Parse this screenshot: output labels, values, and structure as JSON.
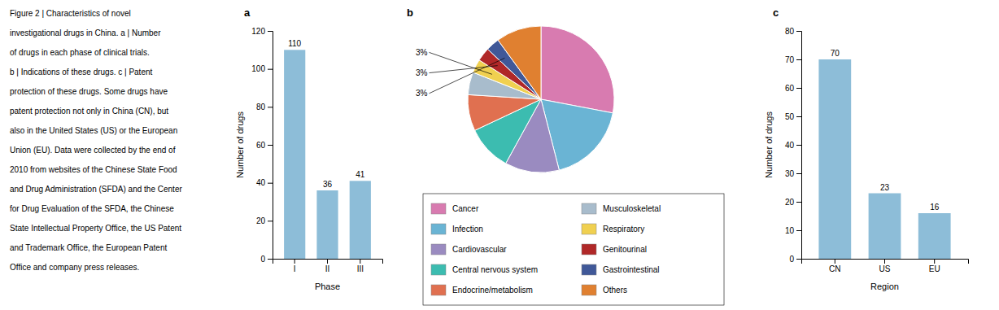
{
  "chart_data": [
    {
      "type": "bar",
      "title": "a",
      "categories": [
        "I",
        "II",
        "III"
      ],
      "values": [
        110,
        36,
        41
      ],
      "color": "#8DBDD8",
      "xlabel": "Phase",
      "ylabel": "Number of drugs",
      "ylim": [
        0,
        120
      ],
      "yticks": [
        0,
        20,
        40,
        60,
        80,
        100,
        120
      ],
      "data_labels": true,
      "annotations": [
        "Figure 2 | Characteristics of novel",
        "investigational drugs in China. a | Number",
        "of drugs in each phase of clinical trials.",
        "b | Indications of these drugs. c | Patent",
        "protection of these drugs. Some drugs have",
        "patent protection not only in China (CN), but",
        "also in the United States (US) or the European",
        "Union (EU). Data were collected by the end of",
        "2010 from websites of the Chinese State Food",
        "and Drug Administration (SFDA) and the Center",
        "for Drug Evaluation of the SFDA, the Chinese",
        "State Intellectual Property Office, the US Patent",
        "and Trademark Office, the European Patent",
        "Office and company press releases."
      ]
    },
    {
      "type": "pie",
      "title": "b",
      "categories": [
        "Cancer",
        "Infection",
        "Cardiovascular",
        "Central nervous system",
        "Endocrine/metabolism",
        "Musculoskeletal",
        "Respiratory",
        "Genitourinal",
        "Gastrointestinal",
        "Others"
      ],
      "values": [
        28,
        18,
        12,
        10,
        8,
        5,
        3,
        3,
        3,
        10
      ],
      "colors": [
        "#D87BB0",
        "#6AB4D4",
        "#9A8BC0",
        "#3CBCB0",
        "#E07050",
        "#A8BCCC",
        "#F0D050",
        "#B02828",
        "#405898",
        "#E08030"
      ],
      "value_labels": [
        null,
        null,
        null,
        null,
        null,
        null,
        "3%",
        "3%",
        "3%",
        null
      ],
      "legend": "bottom"
    },
    {
      "type": "bar",
      "title": "c",
      "categories": [
        "CN",
        "US",
        "EU"
      ],
      "values": [
        70,
        23,
        16
      ],
      "color": "#8DBDD8",
      "xlabel": "Region",
      "ylabel": "Number of drugs",
      "ylim": [
        0,
        80
      ],
      "yticks": [
        0,
        10,
        20,
        30,
        40,
        50,
        60,
        70,
        80
      ],
      "data_labels": true
    }
  ]
}
